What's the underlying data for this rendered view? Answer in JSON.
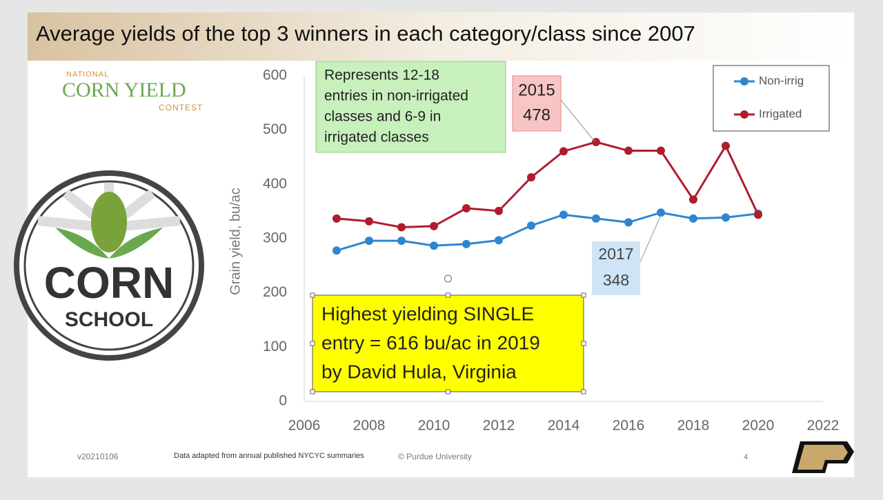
{
  "slide": {
    "title": "Average yields of the top 3 winners in each category/class since 2007",
    "logo_top": {
      "line1": "NATIONAL",
      "line2": "CORN YIELD",
      "line3": "CONTEST"
    },
    "logo_left": {
      "line1": "CORN",
      "line2": "SCHOOL"
    },
    "footer": {
      "version": "v20210106",
      "source": "Data adapted from annual published NYCYC summaries",
      "copyright": "© Purdue University",
      "page": 4
    }
  },
  "chart_data": {
    "type": "line",
    "y_label": "Grain yield, bu/ac",
    "x": [
      2007,
      2008,
      2009,
      2010,
      2011,
      2012,
      2013,
      2014,
      2015,
      2016,
      2017,
      2018,
      2019,
      2020
    ],
    "series": [
      {
        "name": "Non-irrig",
        "color": "#2e86d1",
        "values": [
          278,
          296,
          296,
          287,
          290,
          297,
          324,
          344,
          337,
          330,
          348,
          337,
          339,
          346
        ]
      },
      {
        "name": "Irrigated",
        "color": "#b01c2e",
        "values": [
          337,
          332,
          321,
          323,
          356,
          351,
          413,
          461,
          478,
          462,
          462,
          372,
          471,
          344
        ]
      }
    ],
    "xlim": [
      2006,
      2022
    ],
    "xticks": [
      2006,
      2008,
      2010,
      2012,
      2014,
      2016,
      2018,
      2020,
      2022
    ],
    "ylim": [
      0,
      600
    ],
    "yticks": [
      0,
      100,
      200,
      300,
      400,
      500,
      600
    ],
    "legend": "top-right",
    "annotations": [
      {
        "lines": [
          "Represents 12-18",
          "entries in non-irrigated",
          "classes and 6-9 in",
          "irrigated classes"
        ]
      },
      {
        "lines": [
          "2015",
          "478"
        ]
      },
      {
        "lines": [
          "2017",
          "348"
        ]
      },
      {
        "lines": [
          "Highest yielding SINGLE",
          "entry = 616 bu/ac in 2019",
          "by David Hula, Virginia"
        ]
      }
    ]
  }
}
